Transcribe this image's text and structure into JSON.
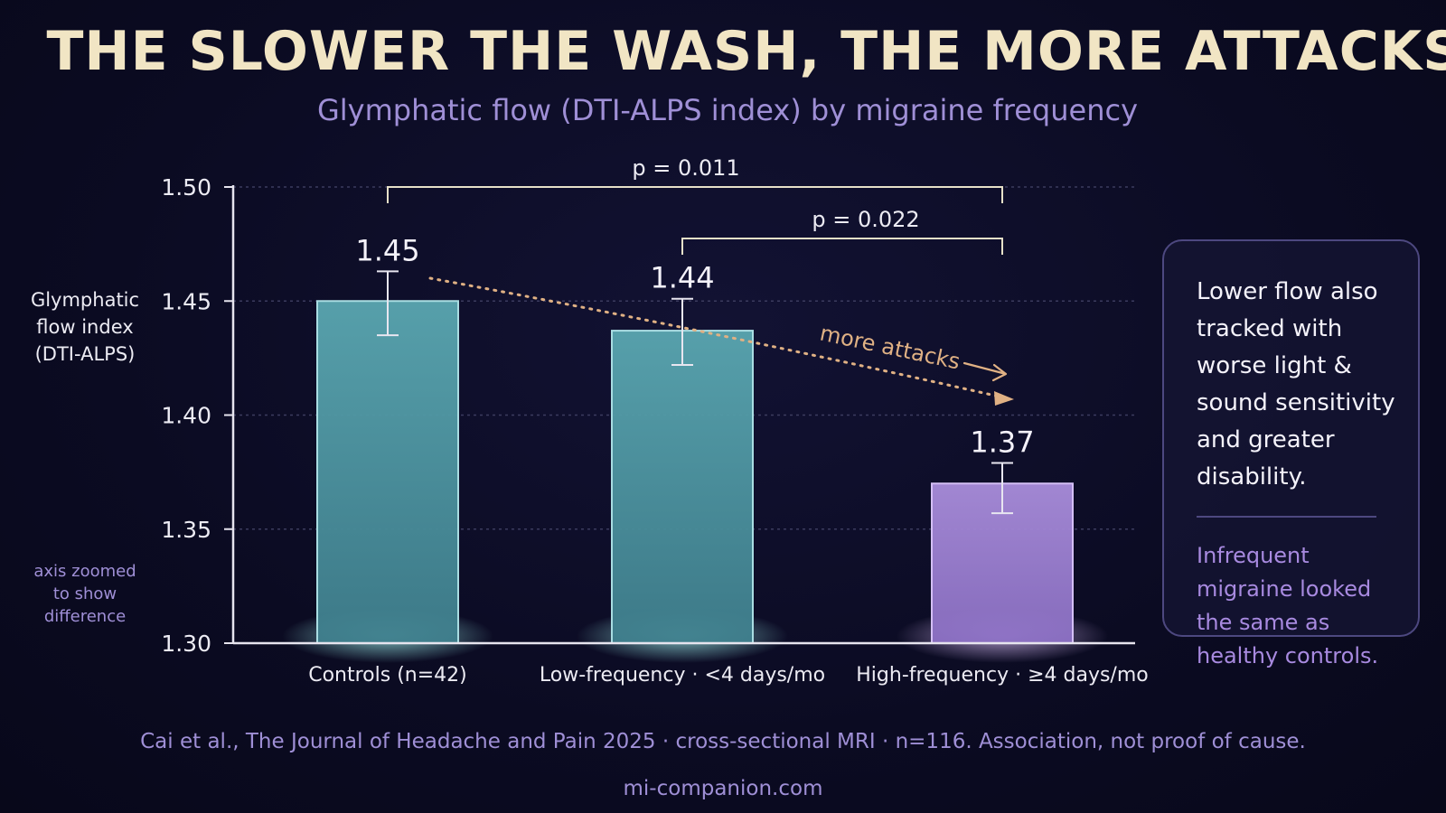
{
  "title": "THE SLOWER THE WASH, THE MORE ATTACKS",
  "subtitle": "Glymphatic flow (DTI-ALPS index) by migraine frequency",
  "chart_data": {
    "type": "bar",
    "categories": [
      "Controls (n=42)",
      "Low-frequency · <4 days/mo",
      "High-frequency · ≥4 days/mo"
    ],
    "values": [
      1.45,
      1.437,
      1.37
    ],
    "value_labels": [
      "1.45",
      "1.44",
      "1.37"
    ],
    "error_bars": [
      {
        "low": 1.435,
        "high": 1.463
      },
      {
        "low": 1.422,
        "high": 1.451
      },
      {
        "low": 1.357,
        "high": 1.379
      }
    ],
    "ylabel_lines": [
      "Glymphatic",
      "flow index",
      "(DTI-ALPS)"
    ],
    "ylim": [
      1.3,
      1.5
    ],
    "yticks": [
      "1.30",
      "1.35",
      "1.40",
      "1.45",
      "1.50"
    ],
    "grid": true,
    "bar_colors": [
      "#4f9aa6",
      "#4f9aa6",
      "#a78bd8"
    ],
    "significance": [
      {
        "from": 0,
        "to": 2,
        "label": "p = 0.011"
      },
      {
        "from": 1,
        "to": 2,
        "label": "p = 0.022"
      }
    ],
    "trend_annotation": "more attacks",
    "axis_note_lines": [
      "axis zoomed",
      "to show",
      "difference"
    ]
  },
  "callout": {
    "main": "Lower flow also tracked with worse light & sound sensitivity and greater disability.",
    "sub": "Infrequent migraine looked the same as healthy controls."
  },
  "footer": "Cai et al., The Journal of Headache and Pain 2025 · cross-sectional MRI · n=116. Association, not proof of cause.",
  "site": "mi-companion.com",
  "colors": {
    "title": "#f1e5c4",
    "accent_purple": "#9f8fd6",
    "teal_bar": "#4f9aa6",
    "purple_bar": "#a78bd8",
    "trend_arrow": "#e0b184"
  }
}
